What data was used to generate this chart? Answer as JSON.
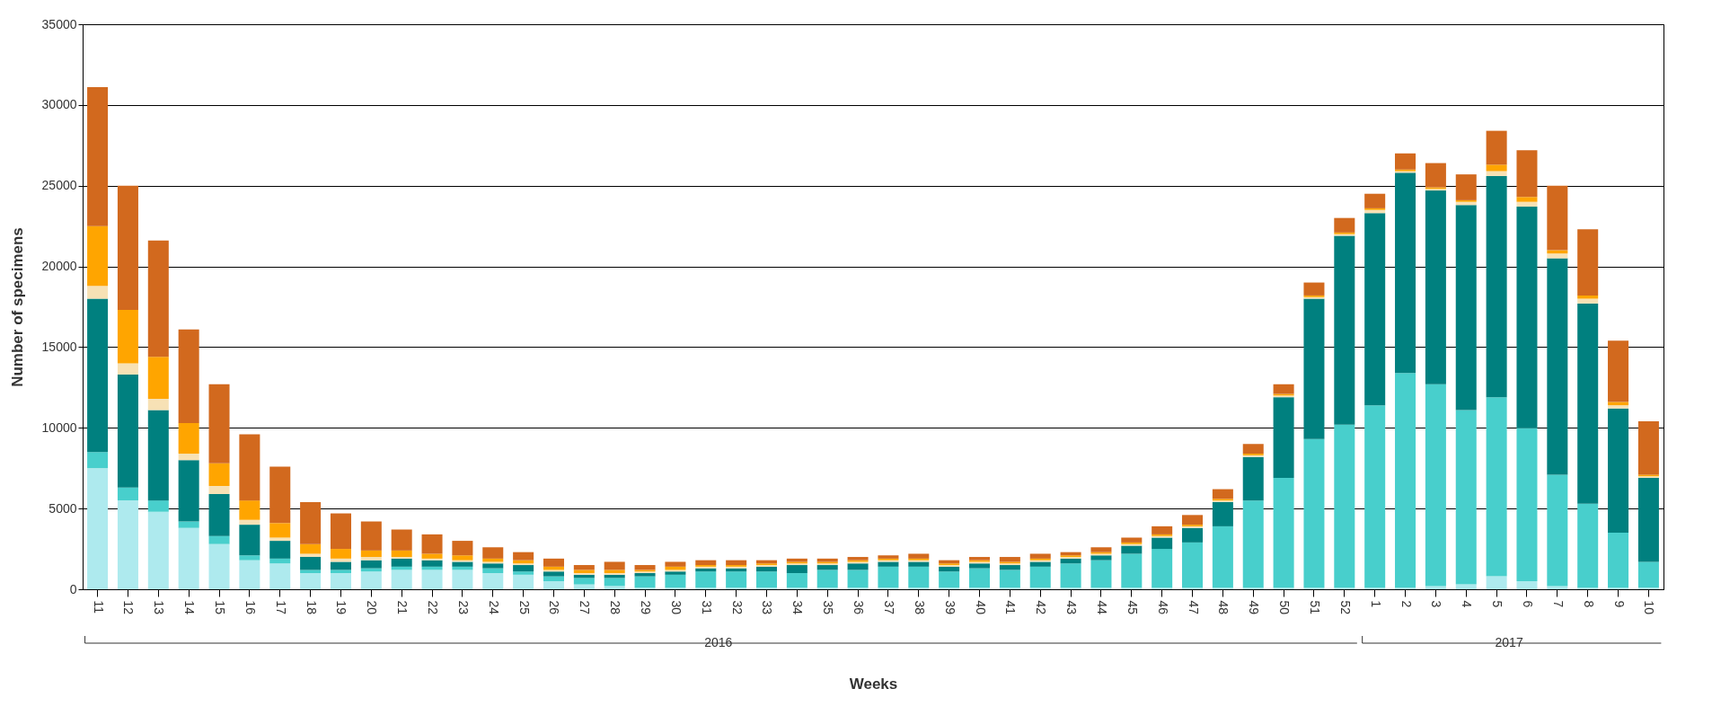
{
  "chart_data": {
    "type": "bar",
    "stacked": true,
    "xlabel": "Weeks",
    "ylabel": "Number of specimens",
    "categories": [
      "11",
      "12",
      "13",
      "14",
      "15",
      "16",
      "17",
      "18",
      "19",
      "20",
      "21",
      "22",
      "23",
      "24",
      "25",
      "26",
      "27",
      "28",
      "29",
      "30",
      "31",
      "32",
      "33",
      "34",
      "35",
      "36",
      "37",
      "38",
      "39",
      "40",
      "41",
      "42",
      "43",
      "44",
      "45",
      "46",
      "47",
      "48",
      "49",
      "50",
      "51",
      "52",
      "1",
      "2",
      "3",
      "4",
      "5",
      "6",
      "7",
      "8",
      "9",
      "10"
    ],
    "series": [
      {
        "color": "#aeeaee",
        "values": [
          7500,
          5500,
          4800,
          3800,
          2800,
          1800,
          1600,
          1000,
          1000,
          1100,
          1200,
          1200,
          1200,
          1000,
          900,
          500,
          300,
          200,
          100,
          100,
          100,
          100,
          100,
          100,
          100,
          100,
          100,
          100,
          100,
          100,
          100,
          100,
          100,
          100,
          100,
          100,
          100,
          100,
          100,
          100,
          100,
          100,
          100,
          100,
          200,
          300,
          800,
          500,
          200,
          100,
          100,
          100
        ]
      },
      {
        "color": "#48cfcc",
        "values": [
          1000,
          800,
          700,
          400,
          500,
          300,
          300,
          200,
          200,
          200,
          200,
          200,
          200,
          300,
          200,
          300,
          400,
          500,
          700,
          800,
          1000,
          1000,
          1000,
          900,
          1100,
          1100,
          1300,
          1300,
          1000,
          1200,
          1100,
          1300,
          1500,
          1700,
          2100,
          2400,
          2800,
          3800,
          5400,
          6800,
          9200,
          10100,
          11300,
          13300,
          12500,
          10800,
          11100,
          9500,
          6900,
          5200,
          3400,
          1600
        ]
      },
      {
        "color": "#00807f",
        "values": [
          9500,
          7000,
          5600,
          3800,
          2600,
          1900,
          1100,
          800,
          500,
          500,
          500,
          400,
          300,
          300,
          400,
          300,
          200,
          200,
          200,
          200,
          200,
          200,
          300,
          500,
          300,
          400,
          300,
          300,
          300,
          300,
          300,
          300,
          300,
          300,
          500,
          700,
          900,
          1500,
          2700,
          5000,
          8700,
          11700,
          11900,
          12400,
          12000,
          12700,
          13700,
          13700,
          13400,
          12400,
          7700,
          5200
        ]
      },
      {
        "color": "#f7e1b5",
        "values": [
          800,
          700,
          700,
          400,
          500,
          300,
          200,
          200,
          200,
          200,
          100,
          100,
          100,
          100,
          100,
          100,
          100,
          100,
          100,
          100,
          100,
          100,
          100,
          100,
          100,
          100,
          100,
          100,
          100,
          100,
          100,
          100,
          100,
          100,
          100,
          100,
          100,
          100,
          100,
          100,
          100,
          100,
          200,
          100,
          100,
          200,
          300,
          300,
          300,
          300,
          200,
          100
        ]
      },
      {
        "color": "#ffa500",
        "values": [
          3700,
          3300,
          2600,
          1900,
          1400,
          1200,
          900,
          600,
          600,
          400,
          400,
          300,
          300,
          200,
          200,
          200,
          200,
          200,
          100,
          200,
          100,
          100,
          100,
          100,
          100,
          100,
          100,
          100,
          100,
          100,
          100,
          100,
          100,
          100,
          100,
          100,
          100,
          100,
          100,
          100,
          100,
          100,
          100,
          100,
          100,
          100,
          400,
          300,
          200,
          200,
          200,
          100
        ]
      },
      {
        "color": "#d2691e",
        "values": [
          8600,
          7700,
          7200,
          5800,
          4900,
          4100,
          3500,
          2600,
          2200,
          1800,
          1300,
          1200,
          900,
          700,
          500,
          500,
          300,
          500,
          300,
          300,
          300,
          300,
          200,
          200,
          200,
          200,
          200,
          300,
          200,
          200,
          300,
          300,
          200,
          300,
          300,
          500,
          600,
          600,
          600,
          600,
          800,
          900,
          900,
          1000,
          1500,
          1600,
          2100,
          2900,
          4000,
          4100,
          3800,
          3300
        ]
      }
    ],
    "ylim": [
      0,
      35000
    ],
    "yticks": [
      0,
      5000,
      10000,
      15000,
      20000,
      25000,
      30000,
      35000
    ],
    "grid": "y",
    "annotations": [
      "2016",
      "2017"
    ]
  }
}
